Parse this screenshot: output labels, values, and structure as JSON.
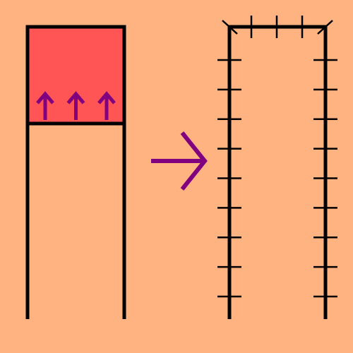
{
  "colors": {
    "background": "#ffb380",
    "fill": "#ff5555",
    "outline": "#000000",
    "arrow": "#800080"
  },
  "left_panel": {
    "shape": "open-bottom rectangle",
    "filled_region": "top",
    "arrow_icon": "up-arrow-icon",
    "arrow_count": 3
  },
  "transition": {
    "arrow_icon": "right-arrow-icon"
  },
  "right_panel": {
    "shape": "open-bottom rectangle with tick marks",
    "side_tick_count": 9,
    "top_tick_count": 3
  }
}
